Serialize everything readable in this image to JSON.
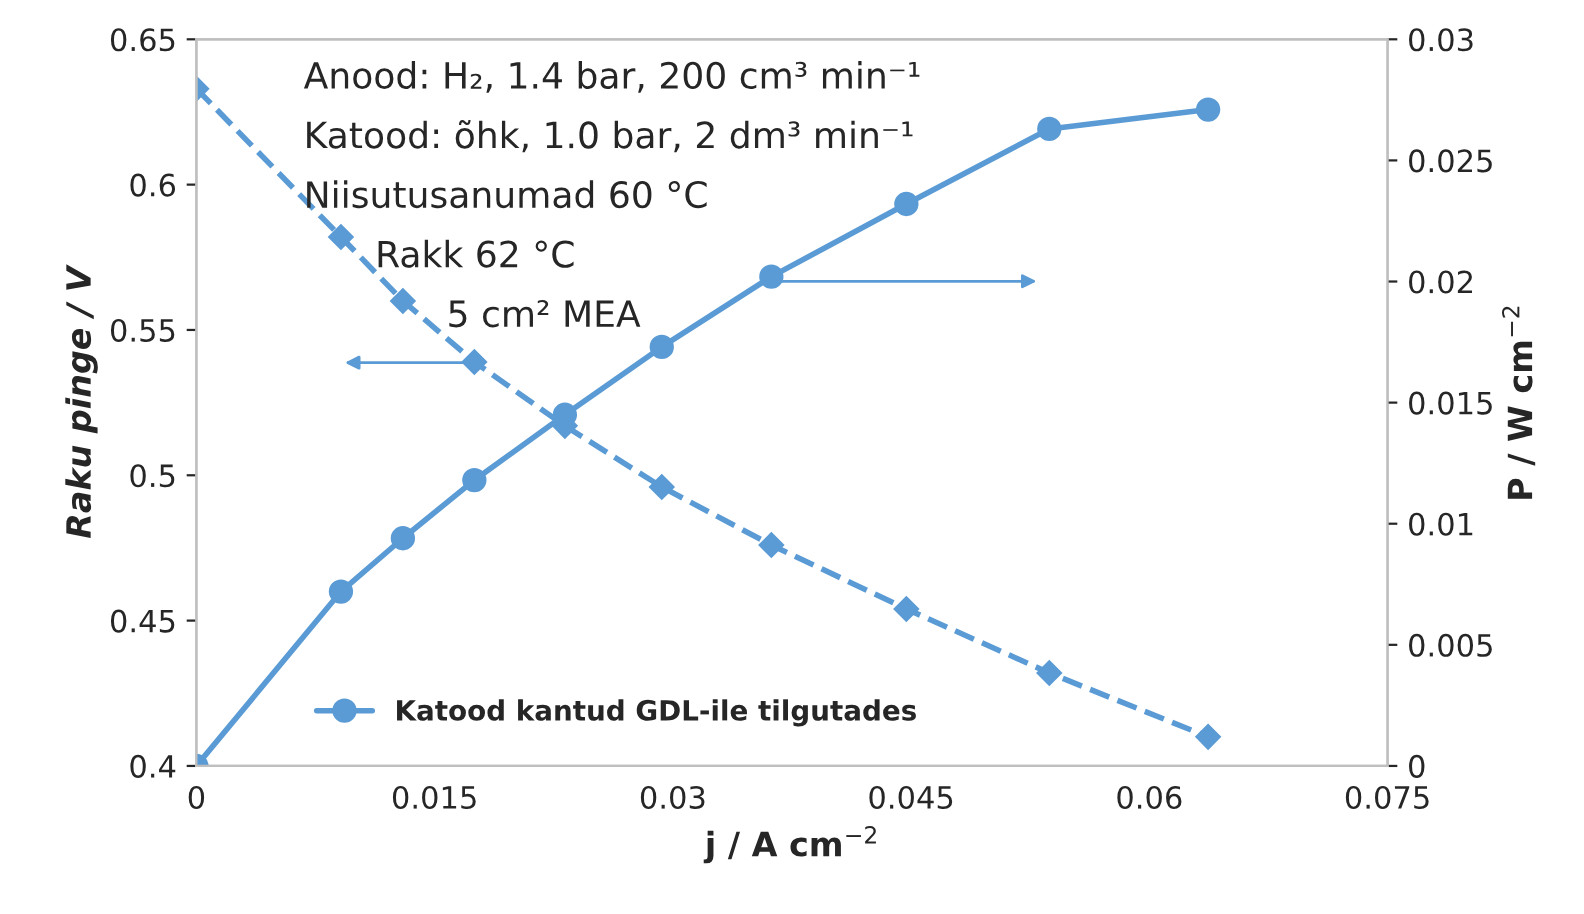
{
  "chart_data": {
    "type": "line",
    "x": [
      0,
      0.0091,
      0.013,
      0.0175,
      0.0232,
      0.0293,
      0.0362,
      0.0447,
      0.0537,
      0.0637
    ],
    "series": [
      {
        "color": "#5b9bd5",
        "marker": "diamond",
        "line_style": "dashed",
        "values": [
          0.633,
          0.582,
          0.56,
          0.539,
          0.517,
          0.496,
          0.476,
          0.454,
          0.432,
          0.41
        ]
      },
      {
        "name": "Katood kantud GDL-ile tilgutades",
        "axis": "y2",
        "color": "#5b9bd5",
        "marker": "circle",
        "line_style": "solid",
        "values": [
          0,
          0.0072,
          0.0094,
          0.0118,
          0.0145,
          0.0173,
          0.0202,
          0.0232,
          0.0263,
          0.0271
        ]
      }
    ],
    "xlabel": "j / A cm$^{−2}$",
    "ylabel": "Raku pinge / V",
    "y2label": "P / W cm$^{−2}$",
    "xlim": [
      0,
      0.075
    ],
    "xticks": [
      0,
      0.015,
      0.03,
      0.045,
      0.06,
      0.075
    ],
    "ylim": [
      0.4,
      0.65
    ],
    "yticks": [
      0.4,
      0.45,
      0.5,
      0.55,
      0.6,
      0.65
    ],
    "y2lim": [
      0,
      0.03
    ],
    "y2ticks": [
      0,
      0.005,
      0.01,
      0.015,
      0.02,
      0.025,
      0.03
    ],
    "annotations": [
      "Anood: H₂, 1.4 bar, 200 cm³ min⁻¹",
      "Katood: õhk, 1.0 bar, 2 dm³ min⁻¹",
      "Niisutusanumad 60 °C",
      "Rakk 62 °C",
      "5 cm² MEA"
    ],
    "legend": "bottom left",
    "grid": false
  }
}
